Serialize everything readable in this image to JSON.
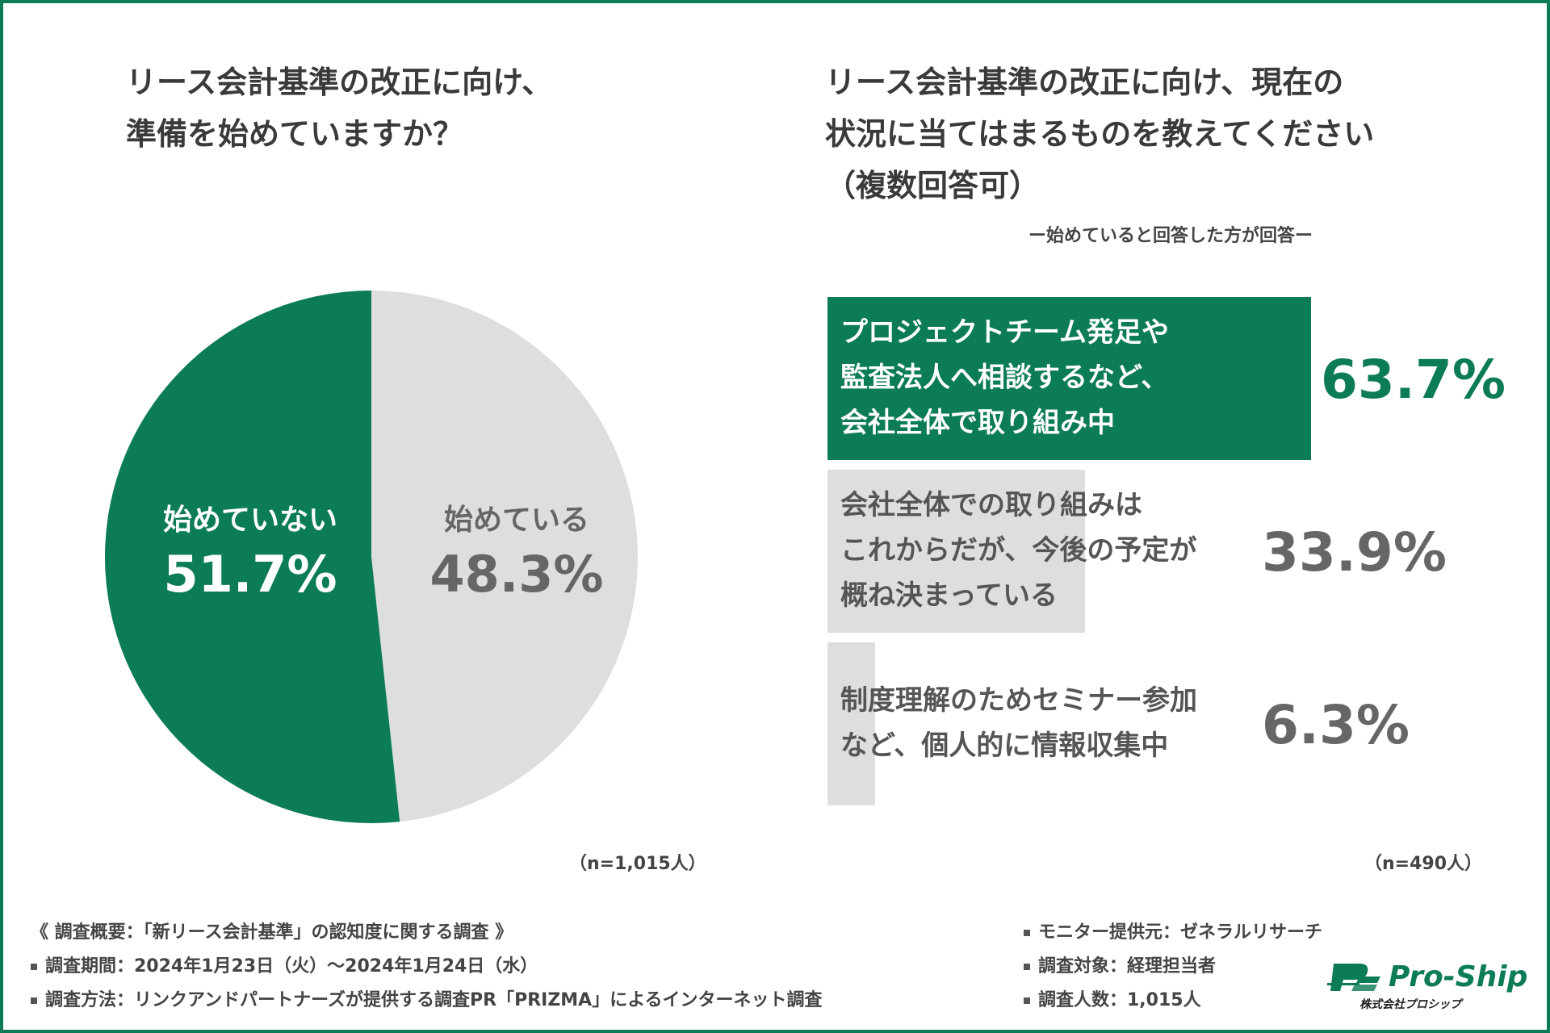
{
  "colors": {
    "accent": "#0b7b58",
    "gray": "#dedede",
    "text": "#3a3a3a",
    "muted": "#666666"
  },
  "left_title": [
    "リース会計基準の改正に向け、",
    "準備を始めていますか？"
  ],
  "right_title": [
    "リース会計基準の改正に向け、現在の",
    "状況に当てはまるものを教えてください",
    "（複数回答可）"
  ],
  "right_subtitle": "ー始めていると回答した方が回答ー",
  "chart_data": [
    {
      "type": "pie",
      "slices": [
        {
          "label": "始めている",
          "value_text": "48.3%",
          "value": 48.3,
          "color": "#dedede"
        },
        {
          "label": "始めていない",
          "value_text": "51.7%",
          "value": 51.7,
          "color": "#0b7b58"
        }
      ],
      "start": "12 o'clock, clockwise",
      "n_note": "（n=1,015人）"
    },
    {
      "type": "bar",
      "orientation": "horizontal",
      "categories": [
        "プロジェクトチーム発足や監査法人へ相談するなど、会社全体で取り組み中",
        "会社全体での取り組みはこれからだが、今後の予定が概ね決まっている",
        "制度理解のためセミナー参加など、個人的に情報収集中"
      ],
      "label_lines": [
        [
          "プロジェクトチーム発足や",
          "監査法人へ相談するなど、",
          "会社全体で取り組み中"
        ],
        [
          "会社全体での取り組みは",
          "これからだが、今後の予定が",
          "概ね決まっている"
        ],
        [
          "制度理解のためセミナー参加",
          "など、個人的に情報収集中"
        ]
      ],
      "values": [
        63.7,
        33.9,
        6.3
      ],
      "value_texts": [
        "63.7%",
        "33.9%",
        "6.3%"
      ],
      "highlight_index": 0,
      "xlim": [
        0,
        100
      ],
      "n_note": "（n=490人）"
    }
  ],
  "footer_left": [
    "《 調査概要：「新リース会計基準」の認知度に関する調査 》",
    "調査期間：2024年1月23日（火）～2024年1月24日（水）",
    "調査方法：リンクアンドパートナーズが提供する調査PR「PRIZMA」によるインターネット調査"
  ],
  "footer_right": [
    "モニター提供元：ゼネラルリサーチ",
    "調査対象：経理担当者",
    "調査人数：1,015人"
  ],
  "logo": {
    "name": "Pro-Ship",
    "sub": "株式会社プロシップ"
  }
}
